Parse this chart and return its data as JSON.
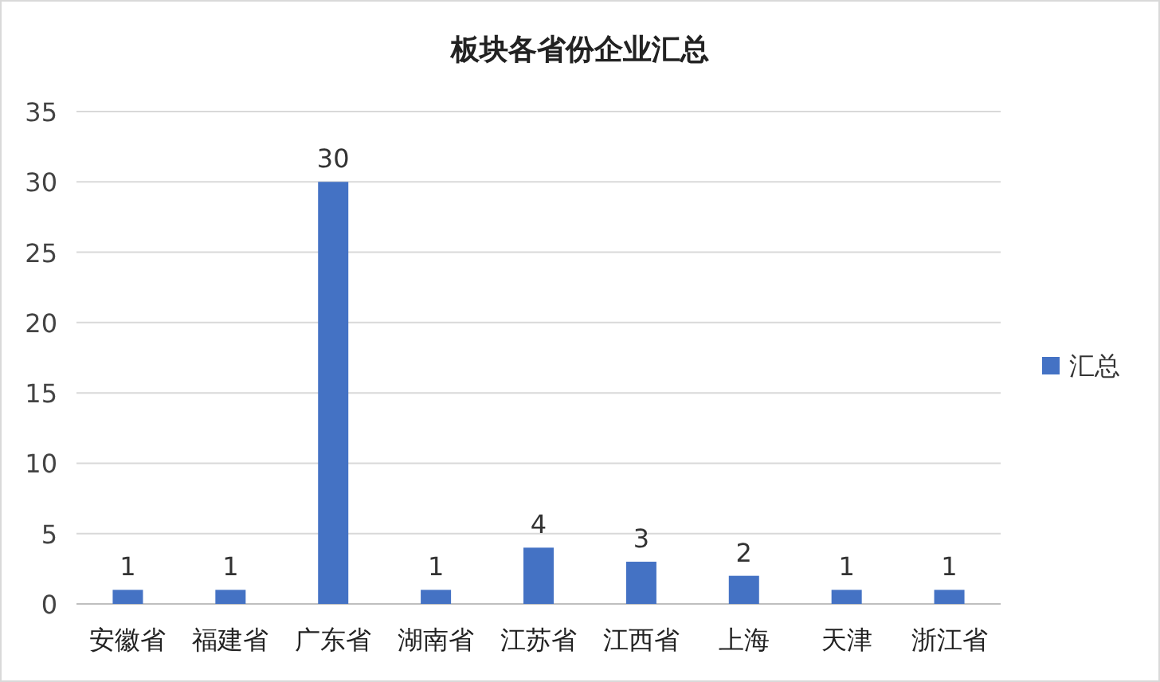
{
  "chart_data": {
    "type": "bar",
    "title": "板块各省份企业汇总",
    "categories": [
      "安徽省",
      "福建省",
      "广东省",
      "湖南省",
      "江苏省",
      "江西省",
      "上海",
      "天津",
      "浙江省"
    ],
    "series": [
      {
        "name": "汇总",
        "color": "#4472c4",
        "values": [
          1,
          1,
          30,
          1,
          4,
          3,
          2,
          1,
          1
        ]
      }
    ],
    "ylim": [
      0,
      35
    ],
    "yticks": [
      0,
      5,
      10,
      15,
      20,
      25,
      30,
      35
    ],
    "grid": "y",
    "legend": "right",
    "data_labels": true
  }
}
